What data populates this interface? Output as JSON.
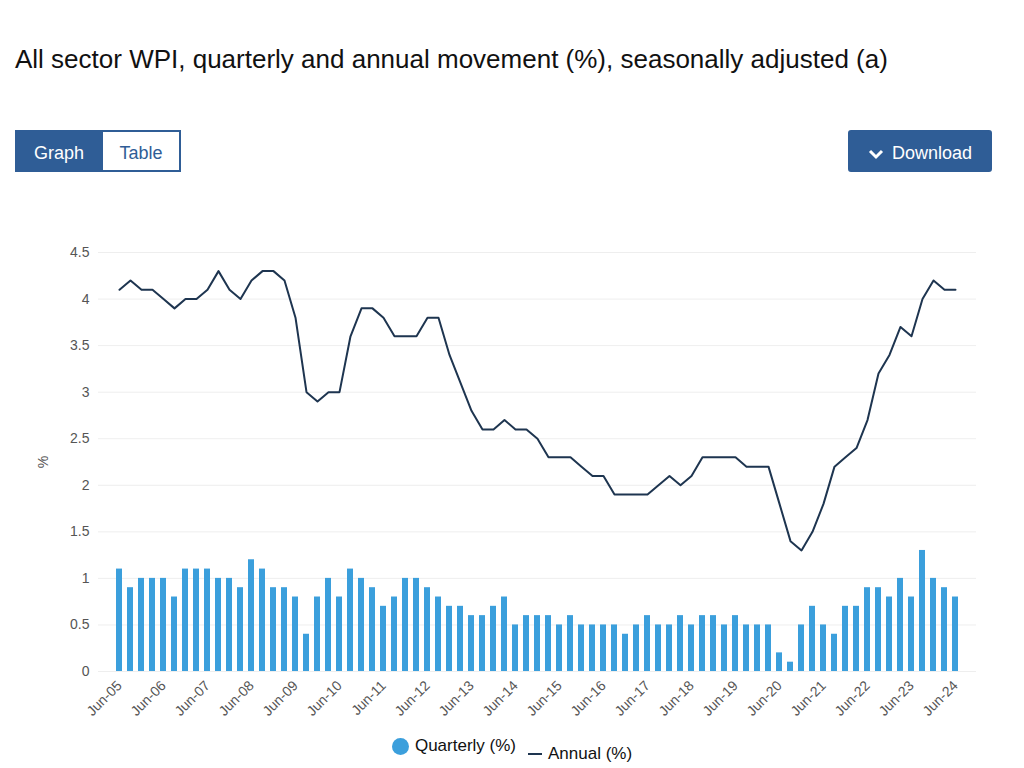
{
  "chart_data": {
    "type": "bar",
    "title": "All sector WPI, quarterly and annual movement (%), seasonally adjusted (a)",
    "controls": [
      "Graph",
      "Table",
      "Download"
    ],
    "y_label": "%",
    "categories": [
      "Jun-05",
      null,
      null,
      null,
      "Jun-06",
      null,
      null,
      null,
      "Jun-07",
      null,
      null,
      null,
      "Jun-08",
      null,
      null,
      null,
      "Jun-09",
      null,
      null,
      null,
      "Jun-10",
      null,
      null,
      null,
      "Jun-11",
      null,
      null,
      null,
      "Jun-12",
      null,
      null,
      null,
      "Jun-13",
      null,
      null,
      null,
      "Jun-14",
      null,
      null,
      null,
      "Jun-15",
      null,
      null,
      null,
      "Jun-16",
      null,
      null,
      null,
      "Jun-17",
      null,
      null,
      null,
      "Jun-18",
      null,
      null,
      null,
      "Jun-19",
      null,
      null,
      null,
      "Jun-20",
      null,
      null,
      null,
      "Jun-21",
      null,
      null,
      null,
      "Jun-22",
      null,
      null,
      null,
      "Jun-23",
      null,
      null,
      null,
      "Jun-24"
    ],
    "series": [
      {
        "name": "Quarterly (%)",
        "type": "bar",
        "color": "#3b9fdc",
        "values": [
          1.1,
          0.9,
          1.0,
          1.0,
          1.0,
          0.8,
          1.1,
          1.1,
          1.1,
          1.0,
          1.0,
          0.9,
          1.2,
          1.1,
          0.9,
          0.9,
          0.8,
          0.4,
          0.8,
          1.0,
          0.8,
          1.1,
          1.0,
          0.9,
          0.7,
          0.8,
          1.0,
          1.0,
          0.9,
          0.8,
          0.7,
          0.7,
          0.6,
          0.6,
          0.7,
          0.8,
          0.5,
          0.6,
          0.6,
          0.6,
          0.5,
          0.6,
          0.5,
          0.5,
          0.5,
          0.5,
          0.4,
          0.5,
          0.6,
          0.5,
          0.5,
          0.6,
          0.5,
          0.6,
          0.6,
          0.5,
          0.6,
          0.5,
          0.5,
          0.5,
          0.2,
          0.1,
          0.5,
          0.7,
          0.5,
          0.4,
          0.7,
          0.7,
          0.9,
          0.9,
          0.8,
          1.0,
          0.8,
          1.3,
          1.0,
          0.9,
          0.8
        ]
      },
      {
        "name": "Annual (%)",
        "type": "line",
        "color": "#1e3550",
        "values": [
          4.1,
          4.2,
          4.1,
          4.1,
          4.0,
          3.9,
          4.0,
          4.0,
          4.1,
          4.3,
          4.1,
          4.0,
          4.2,
          4.3,
          4.3,
          4.2,
          3.8,
          3.0,
          2.9,
          3.0,
          3.0,
          3.6,
          3.9,
          3.9,
          3.8,
          3.6,
          3.6,
          3.6,
          3.8,
          3.8,
          3.4,
          3.1,
          2.8,
          2.6,
          2.6,
          2.7,
          2.6,
          2.6,
          2.5,
          2.3,
          2.3,
          2.3,
          2.2,
          2.1,
          2.1,
          1.9,
          1.9,
          1.9,
          1.9,
          2.0,
          2.1,
          2.0,
          2.1,
          2.3,
          2.3,
          2.3,
          2.3,
          2.2,
          2.2,
          2.2,
          1.8,
          1.4,
          1.3,
          1.5,
          1.8,
          2.2,
          2.3,
          2.4,
          2.7,
          3.2,
          3.4,
          3.7,
          3.6,
          4.0,
          4.2,
          4.1,
          4.1
        ]
      }
    ],
    "ylim": [
      0,
      4.5
    ],
    "yticks": [
      0,
      0.5,
      1,
      1.5,
      2,
      2.5,
      3,
      3.5,
      4,
      4.5
    ],
    "grid": true,
    "legend": "bottom"
  }
}
